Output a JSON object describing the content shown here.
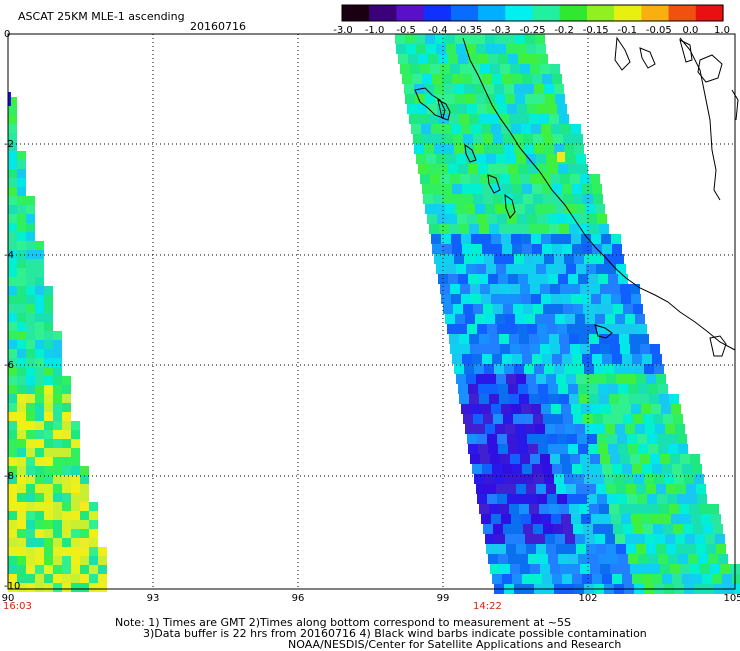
{
  "header": {
    "title": "ASCAT 25KM MLE-1 ascending",
    "date": "20160716"
  },
  "colorbar": {
    "labels": [
      "-3.0",
      "-1.0",
      "-0.5",
      "-0.4",
      "-0.35",
      "-0.3",
      "-0.25",
      "-0.2",
      "-0.15",
      "-0.1",
      "-0.05",
      "0.0",
      "1.0"
    ],
    "colors": [
      "#1a0010",
      "#3b007a",
      "#5a10c8",
      "#1030ff",
      "#0a6cff",
      "#00b0ff",
      "#00f0f0",
      "#20f0a0",
      "#30e830",
      "#90f020",
      "#e8f010",
      "#f8b010",
      "#f05010",
      "#e81010"
    ]
  },
  "axes": {
    "x_ticks": [
      "90",
      "93",
      "96",
      "99",
      "102",
      "105"
    ],
    "y_ticks": [
      "0",
      "-2",
      "-4",
      "-6",
      "-8",
      "-10"
    ]
  },
  "time_labels": {
    "left": "16:03",
    "middle": "14:22",
    "color": "#dd2200"
  },
  "notes": {
    "line1": "Note: 1) Times are GMT 2)Times along bottom correspond to measurement at ~5S",
    "line2": "3)Data buffer is 22 hrs from 20160716 4) Black wind barbs indicate possible contamination",
    "line3": "NOAA/NESDIS/Center for Satellite Applications and Research"
  }
}
